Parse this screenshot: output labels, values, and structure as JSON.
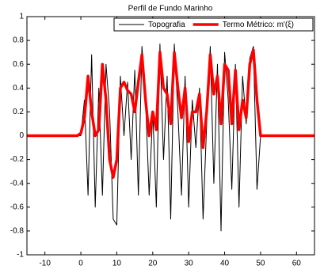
{
  "chart_data": {
    "type": "line",
    "title": "Perfil de Fundo Marinho",
    "x": [
      -15,
      -1,
      0,
      1,
      2,
      3,
      4,
      5,
      6,
      7,
      8,
      9,
      10,
      11,
      12,
      13,
      14,
      15,
      16,
      17,
      18,
      19,
      20,
      21,
      22,
      23,
      24,
      25,
      26,
      27,
      28,
      29,
      30,
      31,
      32,
      33,
      34,
      35,
      36,
      37,
      38,
      39,
      40,
      41,
      42,
      43,
      44,
      45,
      46,
      47,
      48,
      49,
      50,
      51,
      65
    ],
    "series": [
      {
        "name": "Topografia",
        "color": "#000000",
        "width": 1,
        "values": [
          0,
          0,
          0,
          0.3,
          -0.5,
          0.68,
          -0.6,
          0.4,
          -0.5,
          0.6,
          0.2,
          -0.7,
          -0.75,
          0.5,
          0.0,
          0.45,
          -0.2,
          0.55,
          -0.5,
          0.75,
          0.3,
          -0.5,
          0.2,
          -0.6,
          0.77,
          -0.2,
          0.5,
          -0.7,
          0.77,
          0.2,
          -0.5,
          0.5,
          -0.6,
          0.3,
          -0.1,
          0.4,
          -0.7,
          0.1,
          0.75,
          -0.4,
          0.6,
          -0.8,
          0.7,
          0.3,
          -0.45,
          0.6,
          -0.6,
          0.5,
          0.1,
          0.65,
          0.75,
          -0.45,
          0,
          0,
          0
        ]
      },
      {
        "name": "Termo Métrico:  m'(ξ)",
        "color": "#ff0000",
        "width": 3.5,
        "values": [
          0,
          0,
          0.02,
          0.15,
          0.5,
          0.2,
          0,
          0.05,
          0.6,
          0.3,
          -0.2,
          -0.35,
          -0.2,
          0.4,
          0.45,
          0.38,
          0.35,
          0.2,
          0.45,
          0.68,
          0.3,
          0.0,
          0.2,
          0.05,
          0.7,
          0.4,
          0.35,
          0.1,
          0.7,
          0.4,
          0.15,
          0.4,
          -0.05,
          0.2,
          0.2,
          0.35,
          -0.1,
          0.2,
          0.68,
          0.35,
          0.5,
          0.1,
          0.6,
          0.55,
          0.1,
          0.55,
          0.05,
          0.3,
          0.15,
          0.6,
          0.72,
          0.3,
          0.0,
          0,
          0
        ]
      }
    ],
    "xlim": [
      -15,
      65
    ],
    "ylim": [
      -1,
      1
    ],
    "xticks": [
      -10,
      0,
      10,
      20,
      30,
      40,
      50,
      60
    ],
    "yticks": [
      -1,
      -0.8,
      -0.6,
      -0.4,
      -0.2,
      0,
      0.2,
      0.4,
      0.6,
      0.8,
      1
    ],
    "legend": "upper right"
  }
}
